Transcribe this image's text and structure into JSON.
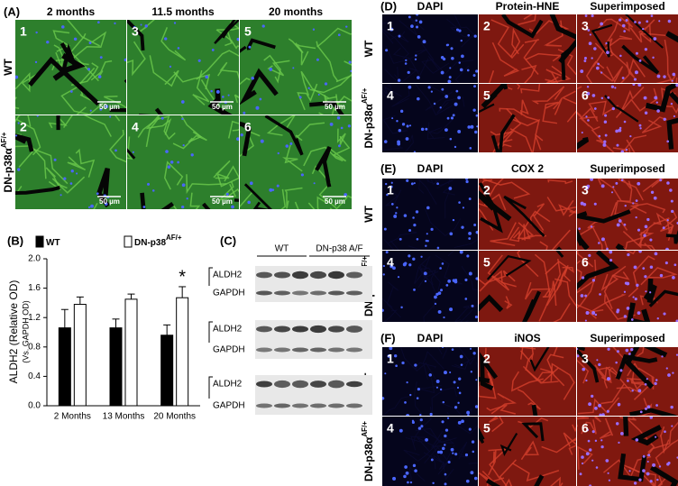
{
  "panel_a": {
    "label": "(A)",
    "columns": [
      "2 months",
      "11.5 months",
      "20 months"
    ],
    "rows": [
      {
        "label": "WT"
      },
      {
        "label": "DN-p38α",
        "sup": "AF/+"
      }
    ],
    "image_numbers": [
      "1",
      "3",
      "5",
      "2",
      "4",
      "6"
    ],
    "scale_bar": "50 µm"
  },
  "chart_data": {
    "type": "bar",
    "panel_label": "(B)",
    "ylabel": "ALDH2 (Relative OD)",
    "ylabel_sub": "(Vs. GAPDH OD)",
    "categories": [
      "2 Months",
      "13 Months",
      "20 Months"
    ],
    "series": [
      {
        "name": "WT",
        "color": "#000000",
        "values": [
          1.06,
          1.06,
          0.96
        ],
        "errors": [
          0.25,
          0.12,
          0.14
        ]
      },
      {
        "name": "DN-p38",
        "name_sup": "AF/+",
        "color": "#ffffff",
        "values": [
          1.38,
          1.45,
          1.47
        ],
        "errors": [
          0.1,
          0.07,
          0.15
        ]
      }
    ],
    "ylim": [
      0,
      2
    ],
    "yticks": [
      {
        "value": 0,
        "label": "0.0"
      },
      0.4,
      0.8,
      1.2,
      1.6,
      {
        "value": 2,
        "label": "2.0"
      }
    ],
    "annotation": "*"
  },
  "panel_c": {
    "label": "(C)",
    "groups": [
      "WT",
      "DN-p38 A/F"
    ],
    "blocks": [
      [
        "ALDH2",
        "GAPDH"
      ],
      [
        "ALDH2",
        "GAPDH"
      ],
      [
        "ALDH2",
        "GAPDH"
      ]
    ]
  },
  "panel_d": {
    "label": "(D)",
    "columns": [
      "DAPI",
      "Protein-HNE",
      "Superimposed"
    ],
    "rows": [
      {
        "label": "WT"
      },
      {
        "label": "DN-p38α",
        "sup": "AF/+"
      }
    ],
    "image_numbers": [
      "1",
      "2",
      "3",
      "4",
      "5",
      "6"
    ]
  },
  "panel_e": {
    "label": "(E)",
    "columns": [
      "DAPI",
      "COX 2",
      "Superimposed"
    ],
    "rows": [
      {
        "label": "WT"
      },
      {
        "label": "DN-p38α",
        "sup": "AF/+"
      }
    ],
    "image_numbers": [
      "1",
      "2",
      "3",
      "4",
      "5",
      "6"
    ]
  },
  "panel_f": {
    "label": "(F)",
    "columns": [
      "DAPI",
      "iNOS",
      "Superimposed"
    ],
    "rows": [
      {
        "label": "WT"
      },
      {
        "label": "DN-p38α",
        "sup": "AF/+"
      }
    ],
    "image_numbers": [
      "1",
      "2",
      "3",
      "4",
      "5",
      "6"
    ]
  }
}
